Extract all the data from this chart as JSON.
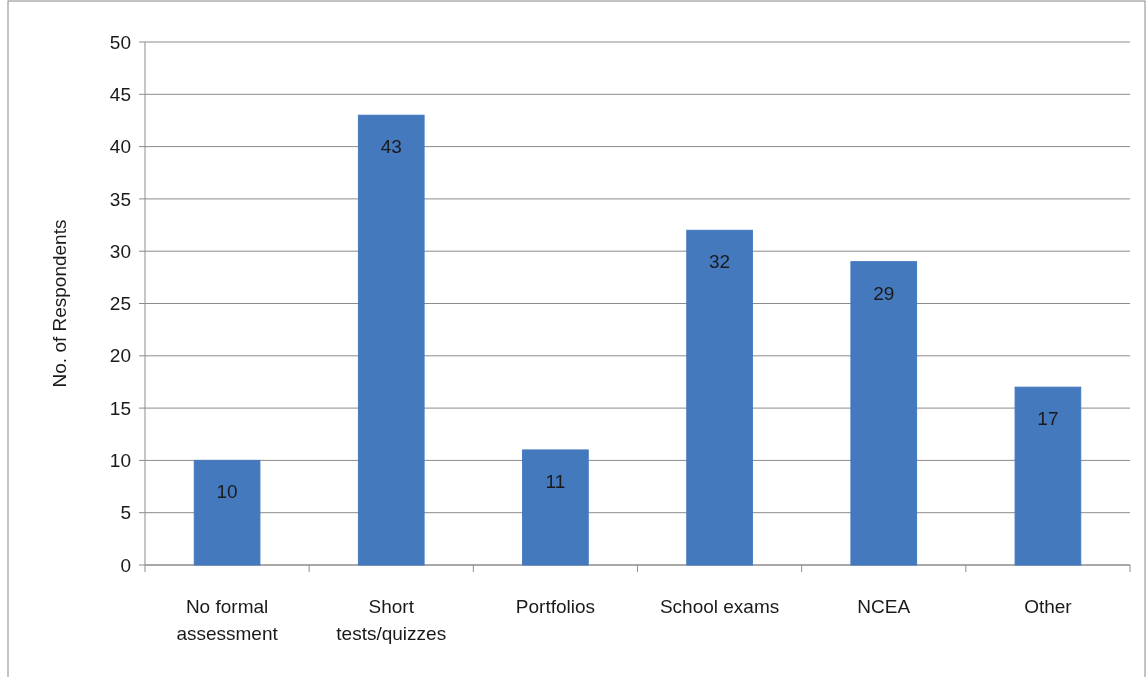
{
  "chart_data": {
    "type": "bar",
    "ylabel": "No. of Respondents",
    "categories": [
      "No formal assessment",
      "Short tests/quizzes",
      "Portfolios",
      "School exams",
      "NCEA",
      "Other"
    ],
    "values": [
      10,
      43,
      11,
      32,
      29,
      17
    ],
    "color": "#4579be",
    "ylim": [
      0,
      50
    ],
    "yticks": [
      0,
      5,
      10,
      15,
      20,
      25,
      30,
      35,
      40,
      45,
      50
    ],
    "grid": "y",
    "data_labels": true
  }
}
